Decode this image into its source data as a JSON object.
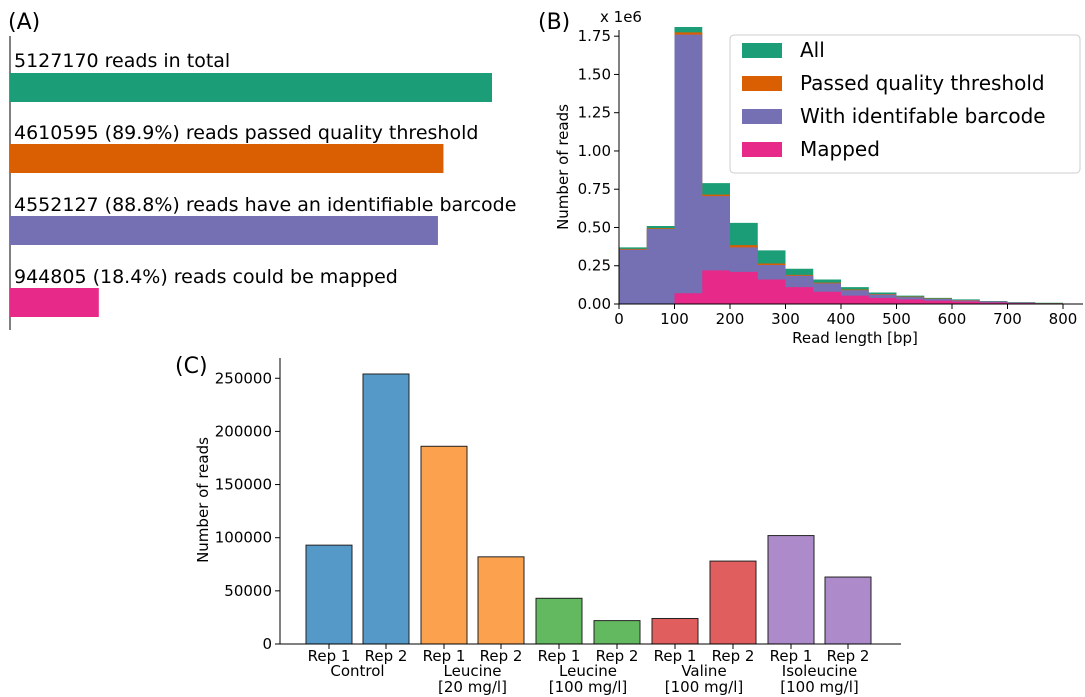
{
  "colors": {
    "all": "#1b9e77",
    "passed": "#d95f02",
    "barcode": "#7570b3",
    "mapped": "#e7298a"
  },
  "chart_data": [
    {
      "panel": "(A)",
      "type": "bar",
      "orientation": "horizontal",
      "categories": [
        "5127170 reads in total",
        "4610595 (89.9%) reads passed quality threshold",
        "4552127 (88.8%) reads have an identifiable barcode",
        "944805 (18.4%) reads could be mapped"
      ],
      "values": [
        5127170,
        4610595,
        4552127,
        944805
      ],
      "bar_colors": [
        "#1b9e77",
        "#d95f02",
        "#7570b3",
        "#e7298a"
      ],
      "xlim": [
        0,
        5127170
      ]
    },
    {
      "panel": "(B)",
      "type": "area",
      "style": "overlaid step histogram",
      "xlabel": "Read length [bp]",
      "ylabel": "Number of reads",
      "y_offset_label": "x 1e6",
      "xlim": [
        0,
        830
      ],
      "ylim": [
        0,
        1.85
      ],
      "xticks": [
        "0",
        "100",
        "200",
        "300",
        "400",
        "500",
        "600",
        "700",
        "800"
      ],
      "yticks": [
        "0.00",
        "0.25",
        "0.50",
        "0.75",
        "1.00",
        "1.25",
        "1.50",
        "1.75"
      ],
      "legend_position": "top-right",
      "bin_edges": [
        0,
        50,
        100,
        150,
        200,
        250,
        300,
        350,
        400,
        450,
        500,
        550,
        600,
        650,
        700,
        750,
        800
      ],
      "series": [
        {
          "name": "All",
          "color": "#1b9e77",
          "values": [
            0.37,
            0.51,
            1.81,
            0.79,
            0.53,
            0.35,
            0.23,
            0.16,
            0.11,
            0.075,
            0.055,
            0.04,
            0.03,
            0.02,
            0.012,
            0.008
          ]
        },
        {
          "name": "Passed quality threshold",
          "color": "#d95f02",
          "values": [
            0.36,
            0.495,
            1.775,
            0.715,
            0.385,
            0.265,
            0.19,
            0.14,
            0.095,
            0.065,
            0.048,
            0.035,
            0.026,
            0.017,
            0.01,
            0.006
          ]
        },
        {
          "name": "With identifable barcode",
          "color": "#7570b3",
          "values": [
            0.355,
            0.49,
            1.76,
            0.705,
            0.37,
            0.255,
            0.185,
            0.135,
            0.09,
            0.062,
            0.045,
            0.033,
            0.024,
            0.016,
            0.009,
            0.005
          ]
        },
        {
          "name": "Mapped",
          "color": "#e7298a",
          "values": [
            0,
            0,
            0.07,
            0.22,
            0.21,
            0.16,
            0.11,
            0.08,
            0.055,
            0.04,
            0.03,
            0.022,
            0.016,
            0.01,
            0.006,
            0.003
          ]
        }
      ]
    },
    {
      "panel": "(C)",
      "type": "bar",
      "ylabel": "Number of reads",
      "ylim": [
        0,
        265000
      ],
      "yticks": [
        "0",
        "50000",
        "100000",
        "150000",
        "200000",
        "250000"
      ],
      "categories": [
        "Rep 1",
        "Rep 2",
        "Rep 1",
        "Rep 2",
        "Rep 1",
        "Rep 2",
        "Rep 1",
        "Rep 2",
        "Rep 1",
        "Rep 2"
      ],
      "groups": [
        {
          "line1": "Control",
          "line2": ""
        },
        {
          "line1": "Leucine",
          "line2": "[20 mg/l]"
        },
        {
          "line1": "Leucine",
          "line2": "[100 mg/l]"
        },
        {
          "line1": "Valine",
          "line2": "[100 mg/l]"
        },
        {
          "line1": "Isoleucine",
          "line2": "[100 mg/l]"
        }
      ],
      "values": [
        93000,
        254000,
        186000,
        82000,
        43000,
        22000,
        24000,
        78000,
        102000,
        63000
      ],
      "bar_colors": [
        "#5599c8",
        "#5599c8",
        "#fca14e",
        "#fca14e",
        "#63b960",
        "#63b960",
        "#e15e5e",
        "#e15e5e",
        "#ad8bcb",
        "#ad8bcb"
      ]
    }
  ]
}
